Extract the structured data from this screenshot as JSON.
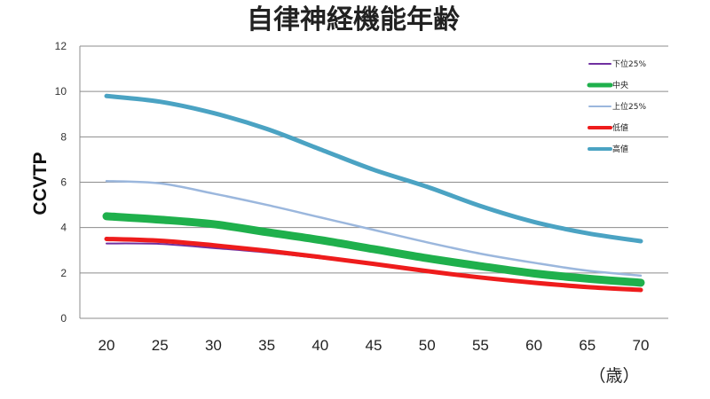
{
  "chart_data": {
    "type": "line",
    "title": "自律神経機能年齢",
    "ylabel": "CCVTP",
    "xunit": "（歳）",
    "x": [
      20,
      25,
      30,
      35,
      40,
      45,
      50,
      55,
      60,
      65,
      70
    ],
    "ylim": [
      0,
      12
    ],
    "yticks": [
      0,
      2,
      4,
      6,
      8,
      10,
      12
    ],
    "grid": true,
    "legend_position": "top-right",
    "series": [
      {
        "name": "下位25%",
        "color": "#7030a0",
        "values": [
          3.3,
          3.28,
          3.1,
          2.9,
          2.65,
          2.38,
          2.08,
          1.82,
          1.6,
          1.42,
          1.28
        ]
      },
      {
        "name": "中央",
        "color": "#1fb04c",
        "values": [
          4.5,
          4.35,
          4.15,
          3.8,
          3.45,
          3.05,
          2.65,
          2.3,
          1.98,
          1.75,
          1.57
        ]
      },
      {
        "name": "上位25%",
        "color": "#9bb7dd",
        "values": [
          6.05,
          5.95,
          5.5,
          5.0,
          4.45,
          3.9,
          3.35,
          2.85,
          2.45,
          2.1,
          1.88
        ]
      },
      {
        "name": "低値",
        "color": "#ee1c1c",
        "values": [
          3.5,
          3.42,
          3.22,
          2.98,
          2.7,
          2.4,
          2.08,
          1.8,
          1.57,
          1.38,
          1.25
        ]
      },
      {
        "name": "高値",
        "color": "#4ba3c3",
        "values": [
          9.8,
          9.55,
          9.05,
          8.35,
          7.45,
          6.55,
          5.8,
          4.95,
          4.25,
          3.75,
          3.4
        ]
      }
    ]
  }
}
